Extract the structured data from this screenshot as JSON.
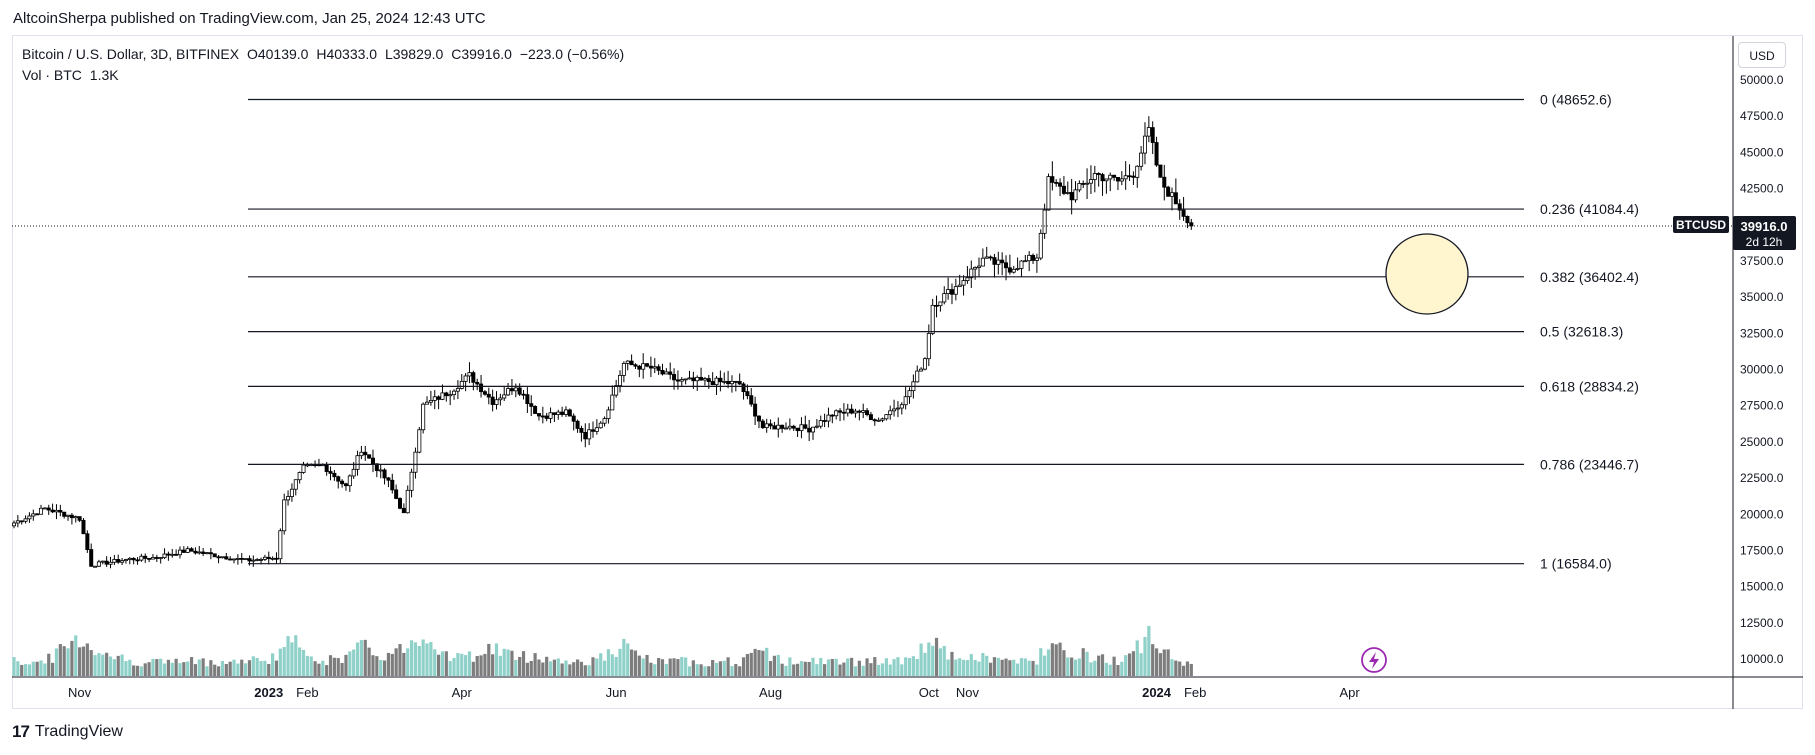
{
  "publisher_line": "AltcoinSherpa published on TradingView.com, Jan 25, 2024 12:43 UTC",
  "legend": {
    "symbol_info": "Bitcoin / U.S. Dollar, 3D, BITFINEX",
    "open": "O40139.0",
    "high": "H40333.0",
    "low": "L39829.0",
    "close": "C39916.0",
    "change": "−223.0 (−0.56%)",
    "volume_label": "Vol · BTC",
    "volume_value": "1.3K"
  },
  "currency_button": "USD",
  "price_label": {
    "ticker": "BTCUSD",
    "price": "39916.0",
    "countdown": "2d 12h"
  },
  "footer": {
    "logo": "17",
    "brand": "TradingView"
  },
  "colors": {
    "up": "#ffffff",
    "down": "#000000",
    "line": "#131722",
    "vol_up": "#8fd1c9",
    "vol_down": "#7d7d7d",
    "highlight": "#fff6d0",
    "alert": "#9c27b0"
  },
  "chart_data": {
    "type": "candlestick",
    "ylim": [
      8500,
      51000
    ],
    "yticks": [
      50000,
      47500,
      45000,
      42500,
      40000,
      37500,
      35000,
      32500,
      30000,
      27500,
      25000,
      22500,
      20000,
      17500,
      15000,
      12500,
      10000
    ],
    "ytick_labels": [
      "50000.0",
      "47500.0",
      "45000.0",
      "42500.0",
      "40000.0",
      "37500.0",
      "35000.0",
      "32500.0",
      "30000.0",
      "27500.0",
      "25000.0",
      "22500.0",
      "20000.0",
      "17500.0",
      "15000.0",
      "12500.0",
      "10000.0"
    ],
    "xticks": [
      {
        "label": "Nov",
        "i": 17
      },
      {
        "label": "2023",
        "i": 66
      },
      {
        "label": "Feb",
        "i": 76
      },
      {
        "label": "Apr",
        "i": 116
      },
      {
        "label": "Jun",
        "i": 156
      },
      {
        "label": "Aug",
        "i": 196
      },
      {
        "label": "Oct",
        "i": 237
      },
      {
        "label": "Nov",
        "i": 247
      },
      {
        "label": "2024",
        "i": 296
      },
      {
        "label": "Feb",
        "i": 306
      },
      {
        "label": "Apr",
        "i": 346
      }
    ],
    "fib_levels": [
      {
        "label": "0 (48652.6)",
        "price": 48652.6
      },
      {
        "label": "0.236 (41084.4)",
        "price": 41084.4
      },
      {
        "label": "0.382 (36402.4)",
        "price": 36402.4
      },
      {
        "label": "0.5 (32618.3)",
        "price": 32618.3
      },
      {
        "label": "0.618 (28834.2)",
        "price": 28834.2
      },
      {
        "label": "0.786 (23446.7)",
        "price": 23446.7
      },
      {
        "label": "1 (16584.0)",
        "price": 16584.0
      }
    ],
    "anchors": [
      [
        0,
        19400,
        0.3
      ],
      [
        8,
        20400,
        0.3
      ],
      [
        17,
        19700,
        0.8
      ],
      [
        20,
        16500,
        0.6
      ],
      [
        30,
        16900,
        0.3
      ],
      [
        36,
        17000,
        0.3
      ],
      [
        45,
        17500,
        0.3
      ],
      [
        60,
        16800,
        0.3
      ],
      [
        68,
        17000,
        0.4
      ],
      [
        70,
        20900,
        0.7
      ],
      [
        75,
        23200,
        0.6
      ],
      [
        80,
        23400,
        0.3
      ],
      [
        86,
        21900,
        0.4
      ],
      [
        90,
        24500,
        0.6
      ],
      [
        97,
        22200,
        0.4
      ],
      [
        101,
        20000,
        0.6
      ],
      [
        106,
        27500,
        0.9
      ],
      [
        113,
        28500,
        0.4
      ],
      [
        118,
        29600,
        0.4
      ],
      [
        124,
        27800,
        0.6
      ],
      [
        130,
        28900,
        0.4
      ],
      [
        136,
        26800,
        0.4
      ],
      [
        143,
        27000,
        0.3
      ],
      [
        148,
        25400,
        0.3
      ],
      [
        153,
        26700,
        0.4
      ],
      [
        158,
        30400,
        0.6
      ],
      [
        165,
        30100,
        0.3
      ],
      [
        172,
        29200,
        0.3
      ],
      [
        180,
        29200,
        0.3
      ],
      [
        188,
        29000,
        0.3
      ],
      [
        194,
        26000,
        0.5
      ],
      [
        200,
        26100,
        0.3
      ],
      [
        206,
        25900,
        0.3
      ],
      [
        212,
        26900,
        0.3
      ],
      [
        218,
        27200,
        0.3
      ],
      [
        224,
        26500,
        0.3
      ],
      [
        231,
        28000,
        0.3
      ],
      [
        236,
        30800,
        0.6
      ],
      [
        238,
        34500,
        0.8
      ],
      [
        244,
        35700,
        0.3
      ],
      [
        251,
        37600,
        0.4
      ],
      [
        258,
        37000,
        0.3
      ],
      [
        265,
        37800,
        0.3
      ],
      [
        268,
        43000,
        0.8
      ],
      [
        274,
        42000,
        0.5
      ],
      [
        280,
        43500,
        0.4
      ],
      [
        286,
        43000,
        0.3
      ],
      [
        290,
        43600,
        0.6
      ],
      [
        294,
        46500,
        0.8
      ],
      [
        297,
        43000,
        0.5
      ],
      [
        302,
        41200,
        0.3
      ],
      [
        305,
        39900,
        0.3
      ]
    ],
    "last_close": 39916.0,
    "volume_last": "1.3K"
  }
}
